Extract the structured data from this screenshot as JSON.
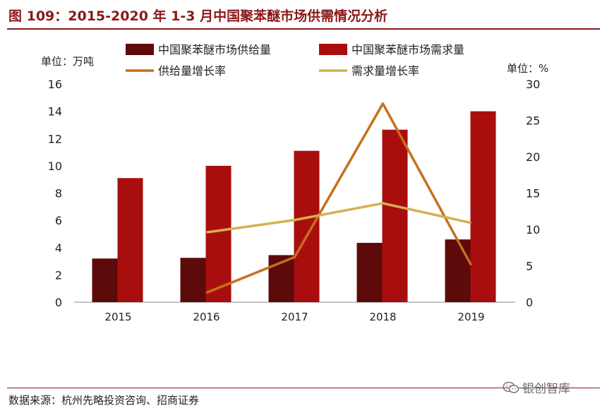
{
  "header": {
    "title": "图 109：2015-2020 年 1-3 月中国聚苯醚市场供需情况分析"
  },
  "footer": {
    "source": "数据来源：杭州先略投资咨询、招商证券"
  },
  "watermark": {
    "text": "银创智库",
    "icon": "wechat-icon"
  },
  "colors": {
    "supply_bar": "#5c0a0a",
    "demand_bar": "#a80e0e",
    "supply_growth_line": "#c5701c",
    "demand_growth_line": "#d4b050",
    "axis": "#888888",
    "title": "#8b1a1a"
  },
  "chart_data": {
    "type": "bar+line",
    "title": "2015-2020 年 1-3 月中国聚苯醚市场供需情况分析",
    "categories": [
      "2015",
      "2016",
      "2017",
      "2018",
      "2019"
    ],
    "left_axis": {
      "label": "单位：万吨",
      "range": [
        0,
        16
      ],
      "ticks": [
        0,
        2,
        4,
        6,
        8,
        10,
        12,
        14,
        16
      ]
    },
    "right_axis": {
      "label": "单位：%",
      "range": [
        0,
        30
      ],
      "ticks": [
        0,
        5,
        10,
        15,
        20,
        25,
        30
      ]
    },
    "legend": {
      "placement": "top",
      "entries": [
        "中国聚苯醚市场供给量",
        "中国聚苯醚市场需求量",
        "供给量增长率",
        "需求量增长率"
      ]
    },
    "bar_series": [
      {
        "name": "中国聚苯醚市场供给量",
        "axis": "left",
        "values": [
          3.2,
          3.25,
          3.45,
          4.35,
          4.6
        ]
      },
      {
        "name": "中国聚苯醚市场需求量",
        "axis": "left",
        "values": [
          9.1,
          10.0,
          11.1,
          12.65,
          14.0
        ]
      }
    ],
    "line_series": [
      {
        "name": "供给量增长率",
        "axis": "right",
        "values": [
          null,
          1.3,
          6.2,
          27.3,
          5.1
        ]
      },
      {
        "name": "需求量增长率",
        "axis": "right",
        "values": [
          null,
          9.6,
          11.3,
          13.6,
          10.9
        ]
      }
    ]
  }
}
